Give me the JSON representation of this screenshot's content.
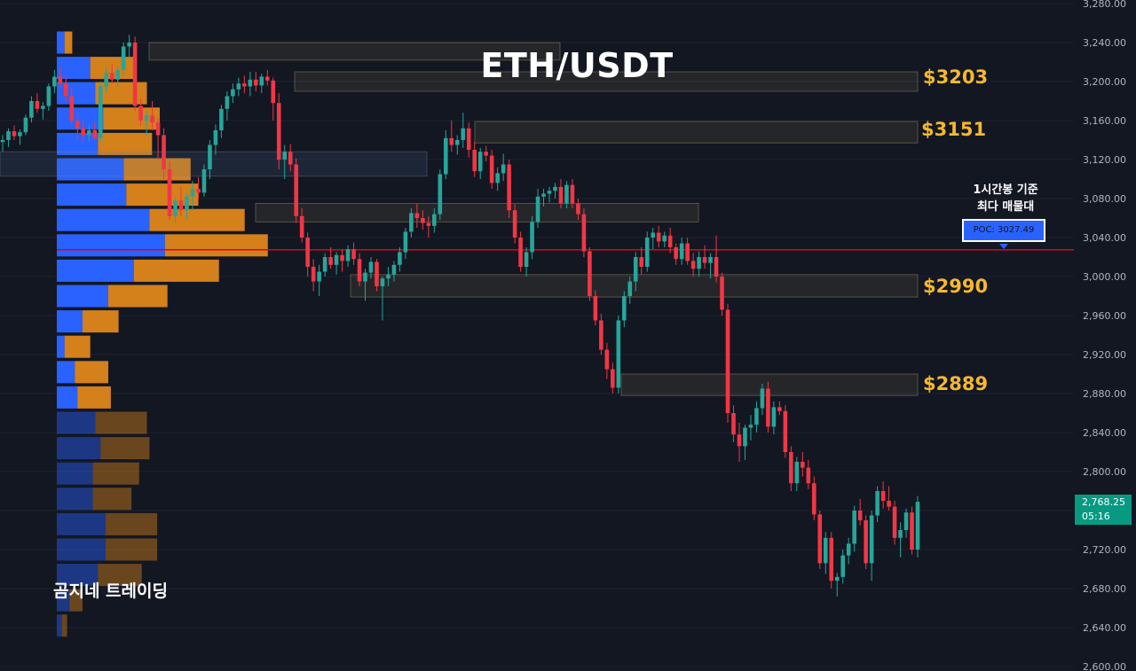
{
  "title": "ETH/USDT",
  "watermark": "곰지네 트레이딩",
  "colors": {
    "background": "#131722",
    "bull": "#26a69a",
    "bear": "#f23645",
    "poc_line": "#e4001b",
    "zone_label": "#f5b82e",
    "vp_buy": "#2962ff",
    "vp_sell": "#f7931a"
  },
  "level_labels": [
    {
      "text": "$3203",
      "price": 3203
    },
    {
      "text": "$3151",
      "price": 3151
    },
    {
      "text": "$2990",
      "price": 2990
    },
    {
      "text": "$2889",
      "price": 2889
    }
  ],
  "poc": {
    "note_line1": "1시간봉 기준",
    "note_line2": "최다 매물대",
    "label": "POC: 3027.49",
    "price": 3027.49
  },
  "last_price": {
    "value": "2,768.25",
    "countdown": "05:16"
  },
  "chart_data": {
    "type": "candlestick",
    "symbol": "ETH/USDT",
    "timeframe_note": "1시간봉",
    "y_axis": {
      "ticks": [
        "3,280.00",
        "3,240.00",
        "3,200.00",
        "3,160.00",
        "3,120.00",
        "3,080.00",
        "3,040.00",
        "3,000.00",
        "2,960.00",
        "2,920.00",
        "2,880.00",
        "2,840.00",
        "2,800.00",
        "2,760.00",
        "2,720.00",
        "2,680.00",
        "2,640.00",
        "2,600.00"
      ],
      "range": [
        2598,
        3282
      ]
    },
    "poc_price": 3027.49,
    "zones": [
      {
        "top": 3240,
        "bottom": 3222,
        "kind": "resistance"
      },
      {
        "top": 3210,
        "bottom": 3190,
        "kind": "resistance"
      },
      {
        "top": 3159,
        "bottom": 3137,
        "kind": "resistance"
      },
      {
        "top": 3128,
        "bottom": 3103,
        "kind": "support"
      },
      {
        "top": 3075,
        "bottom": 3056,
        "kind": "support"
      },
      {
        "top": 3002,
        "bottom": 2979,
        "kind": "support"
      },
      {
        "top": 2900,
        "bottom": 2878,
        "kind": "support"
      }
    ],
    "volume_profile": [
      {
        "price": 3240,
        "buy": 3,
        "sell": 3
      },
      {
        "price": 3214,
        "buy": 13,
        "sell": 18
      },
      {
        "price": 3188,
        "buy": 15,
        "sell": 20
      },
      {
        "price": 3162,
        "buy": 18,
        "sell": 22
      },
      {
        "price": 3136,
        "buy": 16,
        "sell": 21
      },
      {
        "price": 3110,
        "buy": 26,
        "sell": 26
      },
      {
        "price": 3084,
        "buy": 27,
        "sell": 28
      },
      {
        "price": 3058,
        "buy": 36,
        "sell": 37
      },
      {
        "price": 3032,
        "buy": 42,
        "sell": 40
      },
      {
        "price": 3006,
        "buy": 30,
        "sell": 33
      },
      {
        "price": 2980,
        "buy": 20,
        "sell": 23
      },
      {
        "price": 2954,
        "buy": 10,
        "sell": 14
      },
      {
        "price": 2928,
        "buy": 3,
        "sell": 10
      },
      {
        "price": 2902,
        "buy": 7,
        "sell": 13
      },
      {
        "price": 2876,
        "buy": 8,
        "sell": 13
      },
      {
        "price": 2850,
        "buy": 15,
        "sell": 20
      },
      {
        "price": 2824,
        "buy": 17,
        "sell": 19
      },
      {
        "price": 2798,
        "buy": 14,
        "sell": 18
      },
      {
        "price": 2772,
        "buy": 14,
        "sell": 15
      },
      {
        "price": 2746,
        "buy": 19,
        "sell": 20
      },
      {
        "price": 2720,
        "buy": 19,
        "sell": 20
      },
      {
        "price": 2694,
        "buy": 16,
        "sell": 17
      },
      {
        "price": 2668,
        "buy": 5,
        "sell": 5
      },
      {
        "price": 2642,
        "buy": 2,
        "sell": 2
      }
    ],
    "candles": [
      [
        3138,
        3145,
        3128,
        3140
      ],
      [
        3140,
        3152,
        3133,
        3149
      ],
      [
        3149,
        3155,
        3140,
        3144
      ],
      [
        3144,
        3151,
        3135,
        3148
      ],
      [
        3148,
        3166,
        3145,
        3163
      ],
      [
        3163,
        3185,
        3158,
        3180
      ],
      [
        3180,
        3188,
        3168,
        3172
      ],
      [
        3172,
        3179,
        3161,
        3175
      ],
      [
        3175,
        3198,
        3170,
        3195
      ],
      [
        3195,
        3212,
        3188,
        3205
      ],
      [
        3205,
        3215,
        3195,
        3198
      ],
      [
        3198,
        3205,
        3180,
        3185
      ],
      [
        3185,
        3194,
        3155,
        3160
      ],
      [
        3160,
        3168,
        3140,
        3152
      ],
      [
        3152,
        3160,
        3138,
        3145
      ],
      [
        3145,
        3155,
        3138,
        3150
      ],
      [
        3150,
        3158,
        3140,
        3142
      ],
      [
        3142,
        3200,
        3138,
        3195
      ],
      [
        3195,
        3215,
        3188,
        3209
      ],
      [
        3209,
        3218,
        3198,
        3202
      ],
      [
        3202,
        3216,
        3195,
        3212
      ],
      [
        3212,
        3240,
        3205,
        3236
      ],
      [
        3236,
        3248,
        3224,
        3240
      ],
      [
        3240,
        3246,
        3170,
        3175
      ],
      [
        3175,
        3182,
        3155,
        3160
      ],
      [
        3160,
        3170,
        3145,
        3165
      ],
      [
        3165,
        3180,
        3150,
        3158
      ],
      [
        3158,
        3162,
        3120,
        3145
      ],
      [
        3145,
        3152,
        3100,
        3110
      ],
      [
        3110,
        3118,
        3058,
        3062
      ],
      [
        3062,
        3082,
        3055,
        3078
      ],
      [
        3078,
        3092,
        3062,
        3068
      ],
      [
        3068,
        3085,
        3058,
        3082
      ],
      [
        3082,
        3098,
        3068,
        3090
      ],
      [
        3090,
        3102,
        3080,
        3086
      ],
      [
        3086,
        3115,
        3082,
        3110
      ],
      [
        3110,
        3140,
        3100,
        3135
      ],
      [
        3135,
        3156,
        3125,
        3150
      ],
      [
        3150,
        3176,
        3142,
        3172
      ],
      [
        3172,
        3190,
        3160,
        3185
      ],
      [
        3185,
        3198,
        3178,
        3192
      ],
      [
        3192,
        3204,
        3185,
        3198
      ],
      [
        3198,
        3206,
        3188,
        3195
      ],
      [
        3195,
        3210,
        3185,
        3202
      ],
      [
        3202,
        3210,
        3190,
        3196
      ],
      [
        3196,
        3208,
        3188,
        3205
      ],
      [
        3205,
        3212,
        3196,
        3201
      ],
      [
        3201,
        3204,
        3160,
        3178
      ],
      [
        3178,
        3188,
        3110,
        3120
      ],
      [
        3120,
        3135,
        3100,
        3128
      ],
      [
        3128,
        3136,
        3108,
        3115
      ],
      [
        3115,
        3121,
        3055,
        3062
      ],
      [
        3062,
        3070,
        3035,
        3040
      ],
      [
        3040,
        3045,
        3000,
        3010
      ],
      [
        3010,
        3018,
        2985,
        2995
      ],
      [
        2995,
        3012,
        2980,
        3005
      ],
      [
        3005,
        3024,
        3000,
        3020
      ],
      [
        3020,
        3030,
        3008,
        3012
      ],
      [
        3012,
        3025,
        3002,
        3022
      ],
      [
        3022,
        3028,
        3005,
        3016
      ],
      [
        3016,
        3032,
        3010,
        3028
      ],
      [
        3028,
        3035,
        3012,
        3018
      ],
      [
        3018,
        3024,
        2990,
        2995
      ],
      [
        2995,
        3008,
        2975,
        3004
      ],
      [
        3004,
        3020,
        2998,
        3015
      ],
      [
        3015,
        3018,
        2985,
        2990
      ],
      [
        2990,
        3000,
        2955,
        2998
      ],
      [
        2998,
        3010,
        2990,
        3002
      ],
      [
        3002,
        3016,
        2995,
        3012
      ],
      [
        3012,
        3030,
        3005,
        3025
      ],
      [
        3025,
        3050,
        3018,
        3046
      ],
      [
        3046,
        3070,
        3040,
        3065
      ],
      [
        3065,
        3075,
        3050,
        3060
      ],
      [
        3060,
        3068,
        3048,
        3055
      ],
      [
        3055,
        3062,
        3040,
        3052
      ],
      [
        3052,
        3070,
        3045,
        3064
      ],
      [
        3064,
        3110,
        3058,
        3105
      ],
      [
        3105,
        3150,
        3100,
        3142
      ],
      [
        3142,
        3160,
        3128,
        3135
      ],
      [
        3135,
        3145,
        3125,
        3140
      ],
      [
        3140,
        3168,
        3132,
        3152
      ],
      [
        3152,
        3158,
        3122,
        3130
      ],
      [
        3130,
        3138,
        3102,
        3108
      ],
      [
        3108,
        3132,
        3100,
        3128
      ],
      [
        3128,
        3134,
        3118,
        3124
      ],
      [
        3124,
        3130,
        3090,
        3096
      ],
      [
        3096,
        3112,
        3088,
        3106
      ],
      [
        3106,
        3126,
        3098,
        3115
      ],
      [
        3115,
        3120,
        3060,
        3068
      ],
      [
        3068,
        3074,
        3034,
        3040
      ],
      [
        3040,
        3046,
        3005,
        3010
      ],
      [
        3010,
        3030,
        3000,
        3025
      ],
      [
        3025,
        3062,
        3018,
        3056
      ],
      [
        3056,
        3090,
        3050,
        3082
      ],
      [
        3082,
        3090,
        3072,
        3085
      ],
      [
        3085,
        3092,
        3076,
        3088
      ],
      [
        3088,
        3096,
        3080,
        3092
      ],
      [
        3092,
        3100,
        3070,
        3075
      ],
      [
        3075,
        3098,
        3070,
        3094
      ],
      [
        3094,
        3100,
        3070,
        3075
      ],
      [
        3075,
        3080,
        3058,
        3064
      ],
      [
        3064,
        3070,
        3020,
        3026
      ],
      [
        3026,
        3030,
        2975,
        2980
      ],
      [
        2980,
        2986,
        2950,
        2955
      ],
      [
        2955,
        2962,
        2920,
        2925
      ],
      [
        2925,
        2932,
        2895,
        2905
      ],
      [
        2905,
        2912,
        2880,
        2886
      ],
      [
        2886,
        2960,
        2880,
        2955
      ],
      [
        2955,
        2985,
        2948,
        2980
      ],
      [
        2980,
        3000,
        2972,
        2995
      ],
      [
        2995,
        3025,
        2985,
        3020
      ],
      [
        3020,
        3030,
        3002,
        3010
      ],
      [
        3010,
        3046,
        3005,
        3040
      ],
      [
        3040,
        3050,
        3028,
        3045
      ],
      [
        3045,
        3052,
        3030,
        3036
      ],
      [
        3036,
        3046,
        3030,
        3042
      ],
      [
        3042,
        3050,
        3024,
        3030
      ],
      [
        3030,
        3034,
        3012,
        3018
      ],
      [
        3018,
        3040,
        3012,
        3034
      ],
      [
        3034,
        3040,
        3012,
        3016
      ],
      [
        3016,
        3024,
        3000,
        3008
      ],
      [
        3008,
        3026,
        3000,
        3020
      ],
      [
        3020,
        3032,
        3008,
        3014
      ],
      [
        3014,
        3024,
        2998,
        3020
      ],
      [
        3020,
        3042,
        2994,
        3000
      ],
      [
        3000,
        3004,
        2960,
        2966
      ],
      [
        2966,
        2972,
        2850,
        2860
      ],
      [
        2860,
        2868,
        2830,
        2838
      ],
      [
        2838,
        2850,
        2810,
        2826
      ],
      [
        2826,
        2848,
        2812,
        2845
      ],
      [
        2845,
        2858,
        2832,
        2848
      ],
      [
        2848,
        2872,
        2840,
        2865
      ],
      [
        2865,
        2890,
        2858,
        2885
      ],
      [
        2885,
        2892,
        2840,
        2846
      ],
      [
        2846,
        2872,
        2838,
        2866
      ],
      [
        2866,
        2872,
        2858,
        2862
      ],
      [
        2862,
        2868,
        2814,
        2820
      ],
      [
        2820,
        2826,
        2780,
        2788
      ],
      [
        2788,
        2815,
        2780,
        2810
      ],
      [
        2810,
        2820,
        2795,
        2804
      ],
      [
        2804,
        2812,
        2782,
        2788
      ],
      [
        2788,
        2795,
        2750,
        2756
      ],
      [
        2756,
        2760,
        2700,
        2706
      ],
      [
        2706,
        2738,
        2695,
        2732
      ],
      [
        2732,
        2738,
        2680,
        2688
      ],
      [
        2688,
        2696,
        2672,
        2692
      ],
      [
        2692,
        2720,
        2685,
        2714
      ],
      [
        2714,
        2732,
        2705,
        2726
      ],
      [
        2726,
        2765,
        2718,
        2760
      ],
      [
        2760,
        2772,
        2745,
        2750
      ],
      [
        2750,
        2755,
        2700,
        2706
      ],
      [
        2706,
        2760,
        2688,
        2755
      ],
      [
        2755,
        2785,
        2748,
        2780
      ],
      [
        2780,
        2790,
        2762,
        2770
      ],
      [
        2770,
        2785,
        2760,
        2764
      ],
      [
        2764,
        2770,
        2725,
        2732
      ],
      [
        2732,
        2748,
        2712,
        2740
      ],
      [
        2740,
        2762,
        2732,
        2758
      ],
      [
        2758,
        2764,
        2715,
        2720
      ],
      [
        2720,
        2775,
        2712,
        2769
      ]
    ]
  }
}
